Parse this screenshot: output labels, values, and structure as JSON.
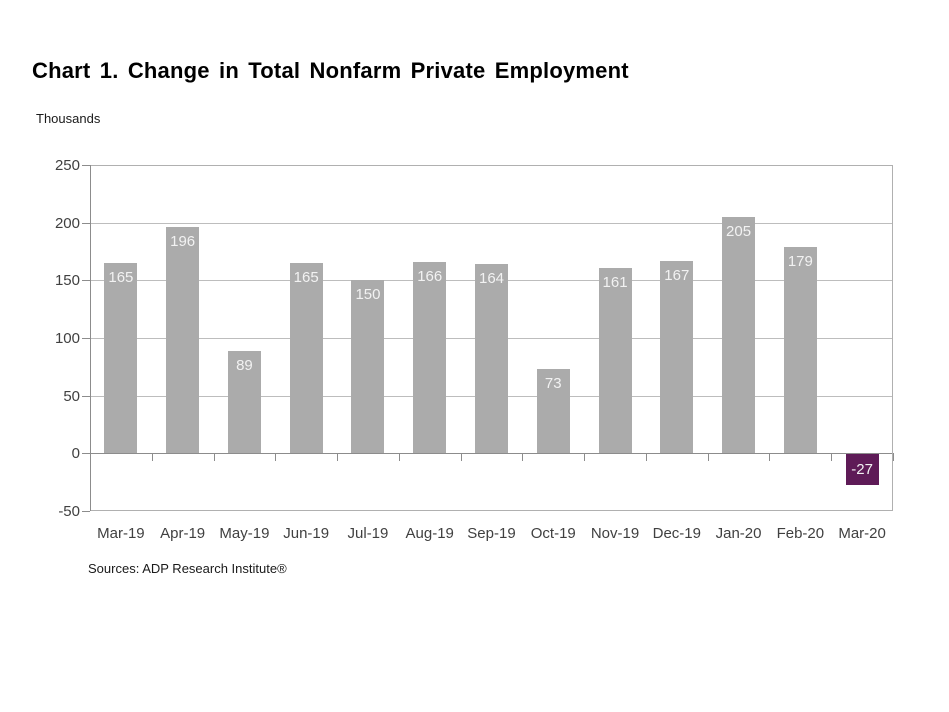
{
  "chart_data": {
    "type": "bar",
    "title": "Chart 1. Change in Total Nonfarm Private Employment",
    "ylabel": "Thousands",
    "xlabel": "",
    "source": "Sources: ADP Research Institute®",
    "categories": [
      "Mar-19",
      "Apr-19",
      "May-19",
      "Jun-19",
      "Jul-19",
      "Aug-19",
      "Sep-19",
      "Oct-19",
      "Nov-19",
      "Dec-19",
      "Jan-20",
      "Feb-20",
      "Mar-20"
    ],
    "values": [
      165,
      196,
      89,
      165,
      150,
      166,
      164,
      73,
      161,
      167,
      205,
      179,
      -27
    ],
    "yticks": [
      250,
      200,
      150,
      100,
      50,
      0,
      -50
    ],
    "ylim": [
      -50,
      250
    ],
    "grid": true,
    "legend": "none",
    "colors": {
      "bar": "#ababab",
      "negative_bar": "#5e1b57",
      "bar_label": "#f2f2f2",
      "gridline": "#bdbdbd",
      "axis": "#8c8c8c",
      "tick_label": "#404040"
    }
  }
}
